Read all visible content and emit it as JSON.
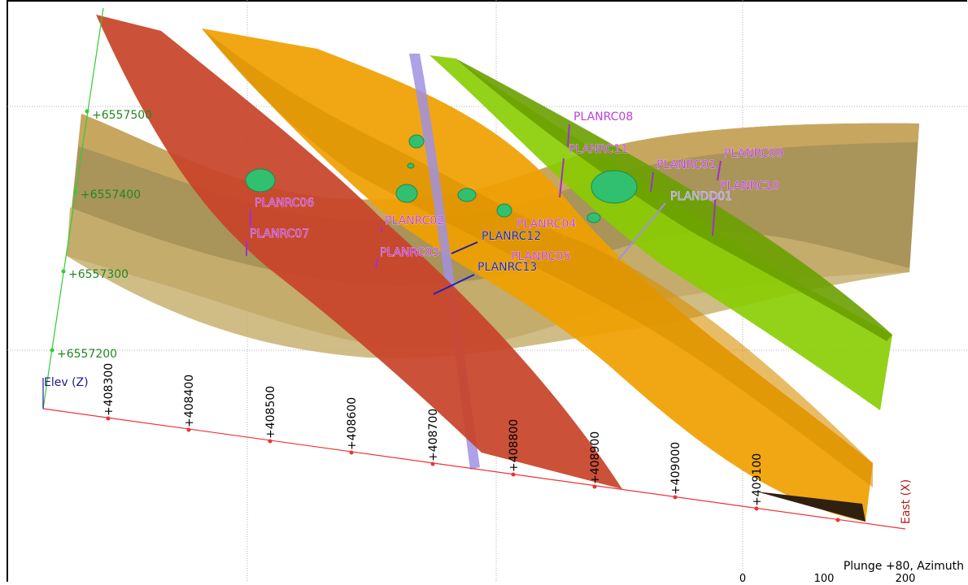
{
  "axes": {
    "north_label": "Elev (Z)",
    "east_label": "East (X)",
    "north_ticks": [
      "+6557500",
      "+6557400",
      "+6557300",
      "+6557200"
    ],
    "east_ticks": [
      "+408300",
      "+408400",
      "+408500",
      "+408600",
      "+408700",
      "+408800",
      "+408900",
      "+409000",
      "+409100"
    ]
  },
  "drillholes": [
    {
      "name": "PLANRC08",
      "color": "#c040e0"
    },
    {
      "name": "PLANRC11",
      "color": "#c040e0"
    },
    {
      "name": "PLANRC01",
      "color": "#c040e0"
    },
    {
      "name": "PLANRC09",
      "color": "#c040e0"
    },
    {
      "name": "PLANRC10",
      "color": "#c040e0"
    },
    {
      "name": "PLANDD01",
      "color": "#b0a0f0"
    },
    {
      "name": "PLANRC06",
      "color": "#c040e0"
    },
    {
      "name": "PLANRC02",
      "color": "#c040e0"
    },
    {
      "name": "PLANRC04",
      "color": "#c040e0"
    },
    {
      "name": "PLANRC07",
      "color": "#c040e0"
    },
    {
      "name": "PLANRC12",
      "color": "#2020a0"
    },
    {
      "name": "PLANRC03",
      "color": "#c040e0"
    },
    {
      "name": "PLANRC05",
      "color": "#c040e0"
    },
    {
      "name": "PLANRC13",
      "color": "#2020a0"
    }
  ],
  "status": {
    "orientation": "Plunge +80, Azimuth",
    "scale_ticks": [
      "0",
      "100",
      "200"
    ]
  },
  "colors": {
    "fault_red": "#c8442a",
    "vein_orange": "#f0a000",
    "vein_green": "#88cc00",
    "band_tan": "#c8a850",
    "dyke_purple": "#a090e0",
    "grid_axis_north": "#33cc33",
    "grid_axis_east": "#ee3333"
  }
}
